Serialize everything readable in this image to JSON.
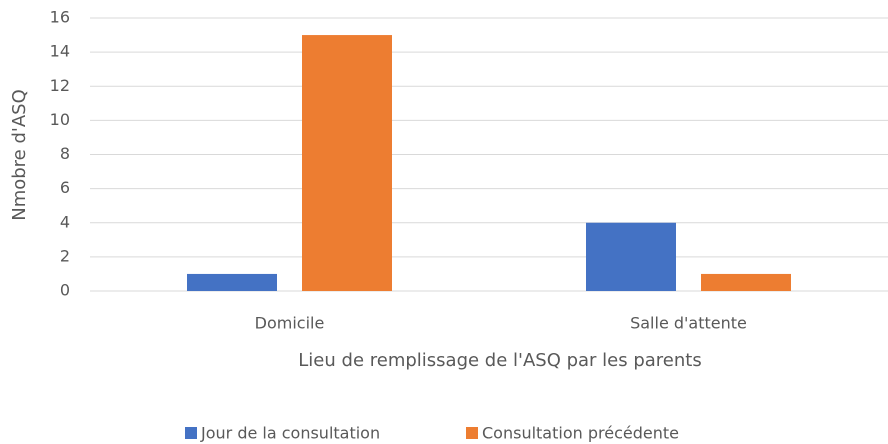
{
  "chart_data": {
    "type": "bar",
    "x_label": "Lieu de remplissage de l'ASQ par les parents",
    "y_label": "Nmobre d'ASQ",
    "categories": [
      "Domicile",
      "Salle d'attente"
    ],
    "series": [
      {
        "name": "Jour de la consultation",
        "color": "#4472c4",
        "values": [
          1,
          4
        ]
      },
      {
        "name": "Consultation précédente",
        "color": "#ed7d31",
        "values": [
          15,
          1
        ]
      }
    ],
    "ylim": [
      0,
      16
    ],
    "yticks": [
      0,
      2,
      4,
      6,
      8,
      10,
      12,
      14,
      16
    ],
    "grid": true,
    "legend": "bottom"
  }
}
